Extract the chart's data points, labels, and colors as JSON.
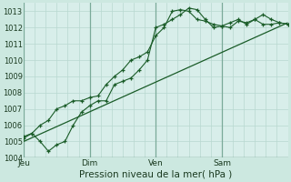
{
  "background_color": "#cce8e0",
  "plot_bg_color": "#d8eeea",
  "grid_color": "#b8d8d0",
  "line_color": "#1a5c28",
  "title": "Pression niveau de la mer( hPa )",
  "ylim": [
    1004,
    1013.5
  ],
  "yticks": [
    1004,
    1005,
    1006,
    1007,
    1008,
    1009,
    1010,
    1011,
    1012,
    1013
  ],
  "day_labels": [
    "Jeu",
    "Dim",
    "Ven",
    "Sam"
  ],
  "day_positions": [
    0,
    48,
    96,
    144
  ],
  "series1_x": [
    0,
    6,
    12,
    18,
    24,
    30,
    36,
    42,
    48,
    54,
    60,
    66,
    72,
    78,
    84,
    90,
    96,
    102,
    108,
    114,
    120,
    126,
    132,
    138,
    144,
    150,
    156,
    162,
    168,
    174,
    180,
    186,
    192
  ],
  "series1_y": [
    1005.2,
    1005.5,
    1005.0,
    1004.4,
    1004.8,
    1005.0,
    1006.0,
    1006.8,
    1007.2,
    1007.5,
    1007.5,
    1008.5,
    1008.7,
    1008.9,
    1009.4,
    1010.0,
    1012.0,
    1012.2,
    1012.5,
    1012.8,
    1013.2,
    1013.1,
    1012.5,
    1012.0,
    1012.1,
    1012.3,
    1012.5,
    1012.2,
    1012.5,
    1012.2,
    1012.2,
    1012.3,
    1012.2
  ],
  "series2_x": [
    0,
    6,
    12,
    18,
    24,
    30,
    36,
    42,
    48,
    54,
    60,
    66,
    72,
    78,
    84,
    90,
    96,
    102,
    108,
    114,
    120,
    126,
    132,
    138,
    144,
    150,
    156,
    162,
    168,
    174,
    180,
    186,
    192
  ],
  "series2_y": [
    1005.3,
    1005.5,
    1006.0,
    1006.3,
    1007.0,
    1007.2,
    1007.5,
    1007.5,
    1007.7,
    1007.8,
    1008.5,
    1009.0,
    1009.4,
    1010.0,
    1010.2,
    1010.5,
    1011.5,
    1012.0,
    1013.0,
    1013.1,
    1013.0,
    1012.5,
    1012.4,
    1012.2,
    1012.1,
    1012.0,
    1012.4,
    1012.3,
    1012.5,
    1012.8,
    1012.5,
    1012.3,
    1012.2
  ],
  "series3_x": [
    0,
    192
  ],
  "series3_y": [
    1005.0,
    1012.3
  ],
  "xmin": 0,
  "xmax": 192
}
